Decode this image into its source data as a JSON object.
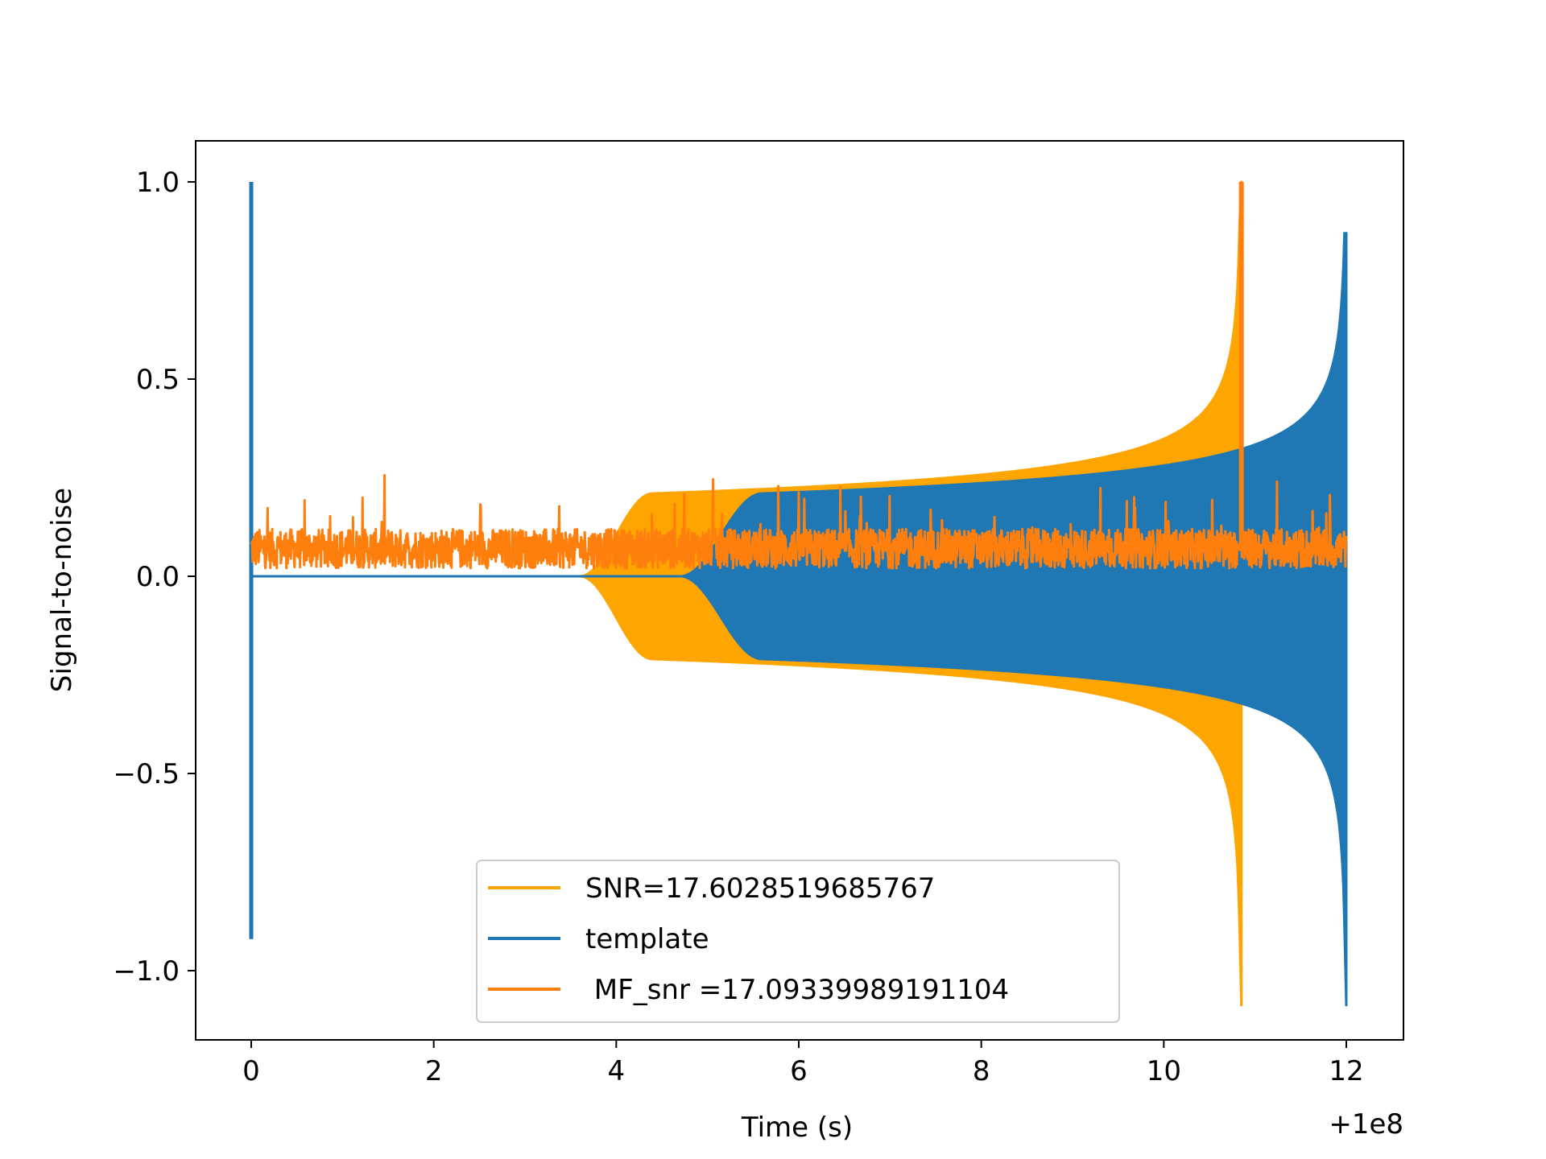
{
  "chart_data": {
    "type": "line",
    "title": "",
    "xlabel": "Time (s)",
    "ylabel": "Signal-to-noise",
    "x_offset_label": "+1e8",
    "xlim": [
      100000000.0,
      100000012.0
    ],
    "ylim": [
      -1.1,
      1.1
    ],
    "xticks": [
      0,
      2,
      4,
      6,
      8,
      10,
      12
    ],
    "xtick_labels": [
      "0",
      "2",
      "4",
      "6",
      "8",
      "10",
      "12"
    ],
    "yticks": [
      1.0,
      0.5,
      0.0,
      -0.5,
      -1.0
    ],
    "ytick_labels": [
      "1.0",
      "0.5",
      "0.0",
      "−0.5",
      "−1.0"
    ],
    "grid": false,
    "legend_position": "lower center",
    "series": [
      {
        "name": "SNR=17.6028519685767",
        "color": "#ffa500",
        "kind": "chirp_envelope",
        "onset_start": 3.6,
        "onset_end": 4.4,
        "baseline_amplitude": 0.21,
        "merger_time": 10.85,
        "peak_max": 1.0,
        "peak_min": -1.09
      },
      {
        "name": "template",
        "color": "#1f77b4",
        "kind": "chirp_envelope",
        "onset_start": 4.7,
        "onset_end": 5.6,
        "baseline_amplitude": 0.21,
        "merger_time": 12.0,
        "peak_max": 0.87,
        "peak_min": -1.09,
        "initial_spike": {
          "x": 0.0,
          "max": 1.0,
          "min": -0.92
        }
      },
      {
        "name": " MF_snr =17.09339989191104",
        "color": "#ff7f0e",
        "kind": "noise",
        "x_start": 0.0,
        "x_end": 12.0,
        "baseline": 0.07,
        "spread": 0.05,
        "peak": {
          "x": 10.85,
          "y": 1.0
        }
      }
    ]
  }
}
